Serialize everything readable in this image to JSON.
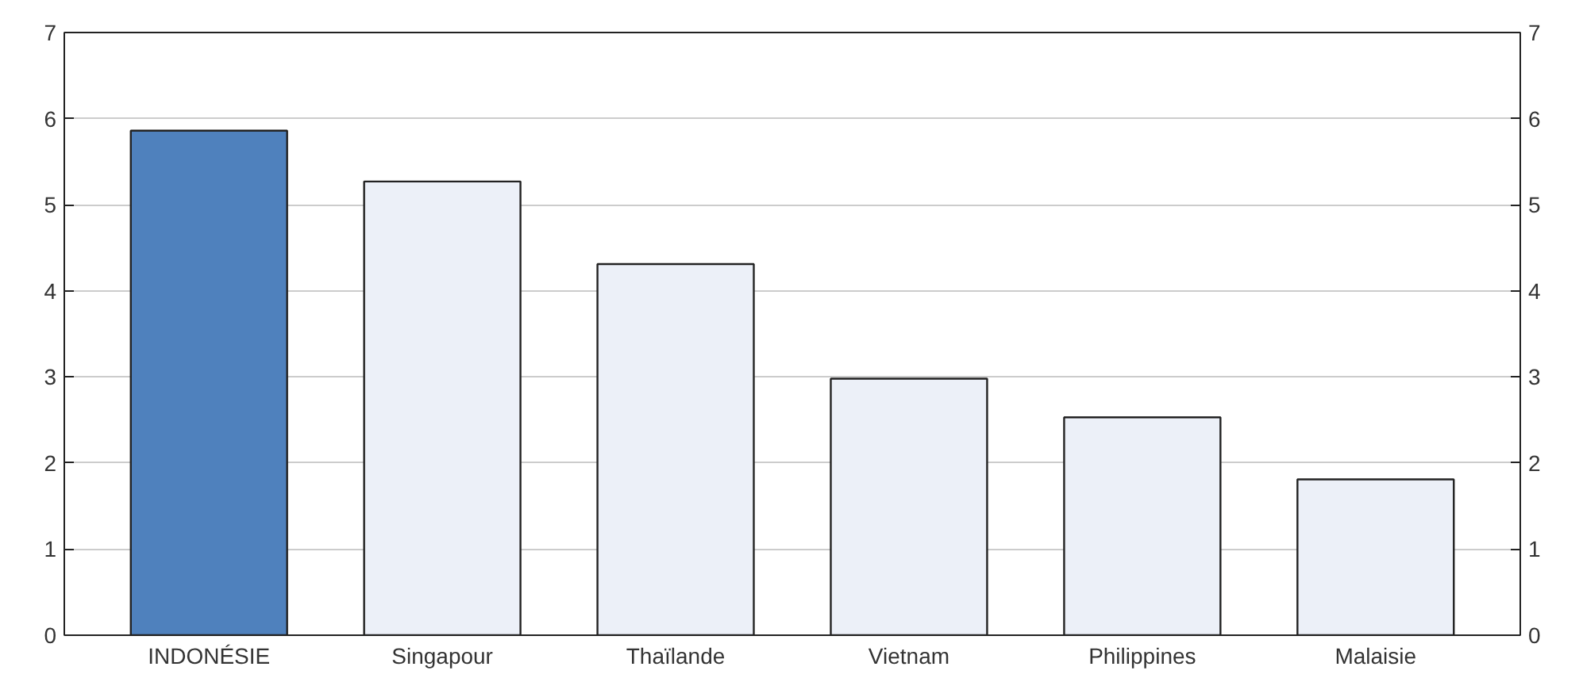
{
  "chart_data": {
    "type": "bar",
    "categories": [
      "INDONÉSIE",
      "Singapour",
      "Thaïlande",
      "Vietnam",
      "Philippines",
      "Malaisie"
    ],
    "values": [
      5.86,
      5.27,
      4.31,
      2.98,
      2.53,
      1.81
    ],
    "colors": [
      "#4f81bd",
      "#ecf0f8",
      "#ecf0f8",
      "#ecf0f8",
      "#ecf0f8",
      "#ecf0f8"
    ],
    "ylim": [
      0,
      7
    ],
    "yticks": [
      0,
      1,
      2,
      3,
      4,
      5,
      6,
      7
    ],
    "y2lim": [
      0,
      7
    ],
    "y2ticks": [
      0,
      1,
      2,
      3,
      4,
      5,
      6,
      7
    ],
    "grid": "y"
  }
}
